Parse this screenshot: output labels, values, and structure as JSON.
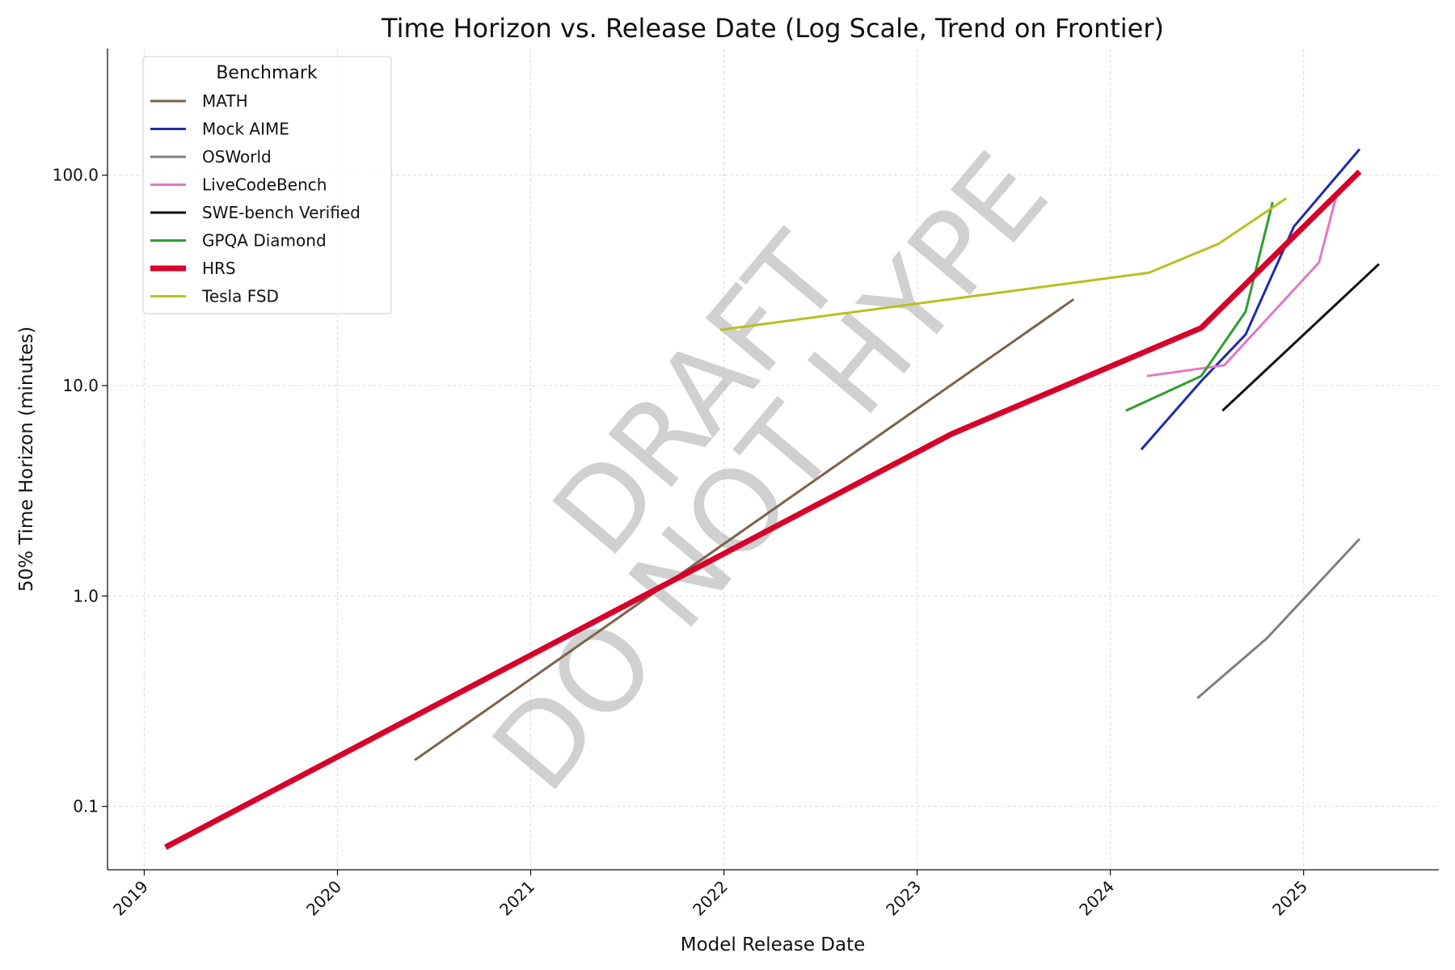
{
  "chart_data": {
    "type": "line",
    "title": "Time Horizon vs. Release Date (Log Scale, Trend on Frontier)",
    "xlabel": "Model Release Date",
    "ylabel": "50% Time Horizon (minutes)",
    "legend_title": "Benchmark",
    "legend": "upper left",
    "yscale": "log",
    "grid": true,
    "xlim": [
      2018.81,
      2025.7
    ],
    "xticks": [
      2019,
      2020,
      2021,
      2022,
      2023,
      2024,
      2025
    ],
    "ylim": [
      0.05,
      400
    ],
    "yticks": [
      0.1,
      {
        "value": 1,
        "label": "1.0"
      },
      {
        "value": 10,
        "label": "10.0"
      },
      {
        "value": 100,
        "label": "100.0"
      }
    ],
    "annotations": [
      "DRAFT",
      "DO NOT HYPE"
    ],
    "series": [
      {
        "name": "MATH",
        "color": "#7b6249",
        "width": 3,
        "x": [
          2020.4,
          2023.81
        ],
        "values": [
          0.166,
          25.7
        ]
      },
      {
        "name": "Mock AIME",
        "color": "#1f2ab0",
        "width": 3,
        "x": [
          2024.16,
          2024.47,
          2024.7,
          2024.95,
          2025.29
        ],
        "values": [
          4.97,
          10.5,
          17.5,
          57,
          133
        ]
      },
      {
        "name": "OSWorld",
        "color": "#7f7f7f",
        "width": 3,
        "x": [
          2024.45,
          2024.81,
          2025.29
        ],
        "values": [
          0.327,
          0.63,
          1.87
        ]
      },
      {
        "name": "LiveCodeBench",
        "color": "#e377c2",
        "width": 3,
        "x": [
          2024.19,
          2024.59,
          2025.08,
          2025.17
        ],
        "values": [
          11.1,
          12.5,
          38.5,
          80
        ]
      },
      {
        "name": "SWE-bench Verified",
        "color": "#111111",
        "width": 3,
        "x": [
          2024.58,
          2025.39
        ],
        "values": [
          7.6,
          37.8
        ]
      },
      {
        "name": "GPQA Diamond",
        "color": "#2ca02c",
        "width": 3,
        "x": [
          2024.08,
          2024.47,
          2024.7,
          2024.84
        ],
        "values": [
          7.6,
          11.1,
          22.5,
          74.5
        ]
      },
      {
        "name": "HRS",
        "color": "#d6002a",
        "width": 7,
        "x": [
          2019.11,
          2023.18,
          2024.47,
          2025.29
        ],
        "values": [
          0.064,
          5.9,
          18.8,
          104
        ]
      },
      {
        "name": "Tesla FSD",
        "color": "#bcbd22",
        "width": 3,
        "x": [
          2021.98,
          2024.2,
          2024.56,
          2024.91
        ],
        "values": [
          18.4,
          34.4,
          47.2,
          77.6
        ]
      }
    ]
  }
}
